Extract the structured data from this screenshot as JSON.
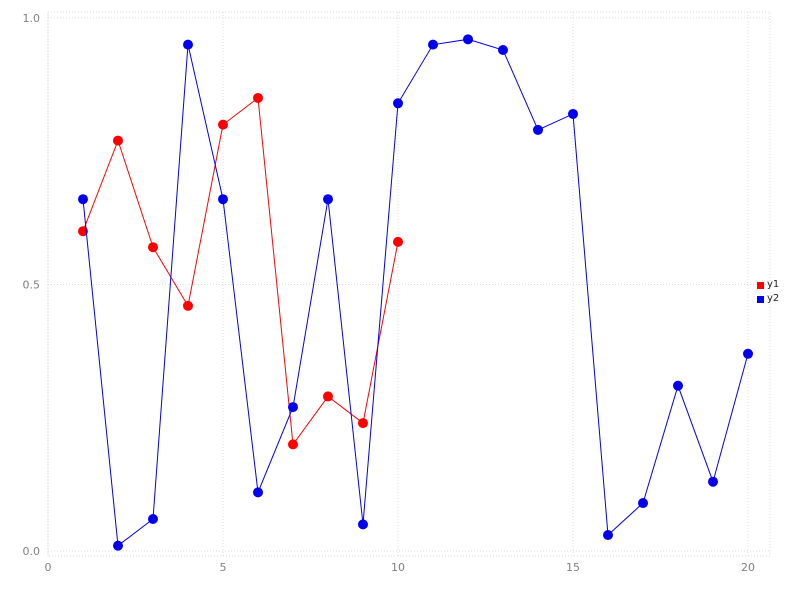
{
  "chart_data": {
    "type": "line",
    "title": "",
    "xlabel": "",
    "ylabel": "",
    "xlim": [
      0,
      20
    ],
    "ylim": [
      0,
      1
    ],
    "xticks": [
      0,
      5,
      10,
      15,
      20
    ],
    "xtick_labels": [
      "0",
      "5",
      "10",
      "15",
      "20"
    ],
    "yticks": [
      0,
      0.5,
      1
    ],
    "ytick_labels": [
      "0.0",
      "0.5",
      "1.0"
    ],
    "grid": true,
    "grid_style": "dotted",
    "legend_position": "right-outside",
    "marker": "circle",
    "series": [
      {
        "name": "y1",
        "color": "#ff0000",
        "x": [
          1,
          2,
          3,
          4,
          5,
          6,
          7,
          8,
          9,
          10
        ],
        "values": [
          0.6,
          0.77,
          0.57,
          0.46,
          0.8,
          0.85,
          0.2,
          0.29,
          0.24,
          0.58
        ]
      },
      {
        "name": "y2",
        "color": "#0000ee",
        "x": [
          1,
          2,
          3,
          4,
          5,
          6,
          7,
          8,
          9,
          10,
          11,
          12,
          13,
          14,
          15,
          16,
          17,
          18,
          19,
          20
        ],
        "values": [
          0.66,
          0.01,
          0.06,
          0.95,
          0.66,
          0.11,
          0.27,
          0.66,
          0.05,
          0.84,
          0.95,
          0.96,
          0.94,
          0.79,
          0.82,
          0.03,
          0.09,
          0.31,
          0.13,
          0.37
        ]
      }
    ],
    "colors": {
      "grid": "#dcdcdc",
      "tick_label": "#808080",
      "background": "#ffffff"
    }
  }
}
